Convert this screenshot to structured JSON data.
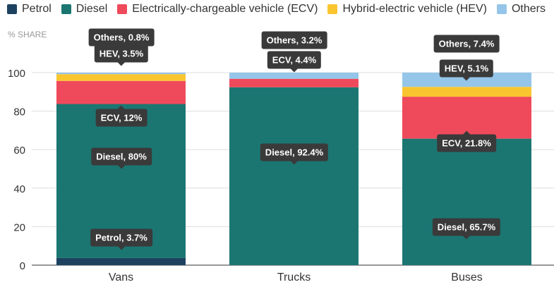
{
  "chart_data": {
    "type": "bar",
    "stacked": true,
    "ylabel": "% SHARE",
    "ylim": [
      0,
      100
    ],
    "yticks": [
      "0",
      "20",
      "40",
      "60",
      "80",
      "100"
    ],
    "grid": true,
    "legend_position": "top",
    "categories": [
      "Vans",
      "Trucks",
      "Buses"
    ],
    "series": [
      {
        "name": "Petrol",
        "color": "#1d4260",
        "values": [
          3.7,
          0,
          0
        ]
      },
      {
        "name": "Diesel",
        "color": "#1b7672",
        "values": [
          80,
          92.4,
          65.7
        ]
      },
      {
        "name": "Electrically-chargeable vehicle (ECV)",
        "color": "#ef4a5b",
        "values": [
          12,
          4.4,
          21.8
        ]
      },
      {
        "name": "Hybrid-electric vehicle (HEV)",
        "color": "#fac62f",
        "values": [
          3.5,
          0,
          5.1
        ]
      },
      {
        "name": "Others",
        "color": "#95c6e9",
        "values": [
          0.8,
          3.2,
          7.4
        ]
      }
    ],
    "data_labels": [
      [
        "Petrol, 3.7%",
        "Diesel, 80%",
        "ECV, 12%",
        "HEV, 3.5%",
        "Others, 0.8%"
      ],
      [
        "",
        "Diesel, 92.4%",
        "ECV, 4.4%",
        "",
        "Others, 3.2%"
      ],
      [
        "",
        "Diesel, 65.7%",
        "ECV, 21.8%",
        "HEV, 5.1%",
        "Others, 7.4%"
      ]
    ]
  }
}
